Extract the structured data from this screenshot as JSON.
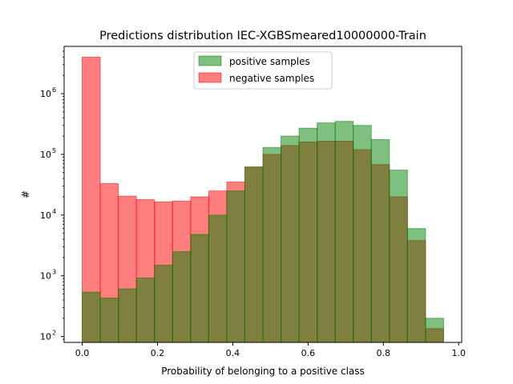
{
  "chart_data": {
    "type": "bar",
    "title": "Predictions distribution IEC-XGBSmeared10000000-Train",
    "xlabel": "Probability of belonging to a positive class",
    "ylabel": "#",
    "yscale": "log",
    "xlim": [
      -0.048,
      1.008
    ],
    "ylim": [
      80,
      6000000
    ],
    "bin_edges": [
      0.0,
      0.048,
      0.096,
      0.144,
      0.192,
      0.24,
      0.288,
      0.336,
      0.384,
      0.432,
      0.48,
      0.528,
      0.576,
      0.624,
      0.672,
      0.72,
      0.768,
      0.816,
      0.864,
      0.912,
      0.96
    ],
    "xticks": [
      {
        "value": 0.0,
        "label": "0.0"
      },
      {
        "value": 0.2,
        "label": "0.2"
      },
      {
        "value": 0.4,
        "label": "0.4"
      },
      {
        "value": 0.6,
        "label": "0.6"
      },
      {
        "value": 0.8,
        "label": "0.8"
      },
      {
        "value": 1.0,
        "label": "1.0"
      }
    ],
    "yticks": [
      {
        "value": 100,
        "base": "10",
        "exp": "2"
      },
      {
        "value": 1000,
        "base": "10",
        "exp": "3"
      },
      {
        "value": 10000,
        "base": "10",
        "exp": "4"
      },
      {
        "value": 100000,
        "base": "10",
        "exp": "5"
      },
      {
        "value": 1000000,
        "base": "10",
        "exp": "6"
      }
    ],
    "legend": {
      "placement": "upper-center"
    },
    "series": [
      {
        "name": "positive samples",
        "fill": "#008000",
        "edge": "#008000",
        "alpha": 0.5,
        "values": [
          540,
          430,
          610,
          920,
          1500,
          2500,
          4800,
          10000,
          25000,
          62000,
          130000,
          200000,
          270000,
          330000,
          350000,
          300000,
          175000,
          55000,
          6000,
          200
        ]
      },
      {
        "name": "negative samples",
        "fill": "#ff0000",
        "edge": "#ff0000",
        "alpha": 0.5,
        "values": [
          4000000,
          33000,
          20500,
          18000,
          16500,
          17000,
          20000,
          25000,
          35000,
          62000,
          100000,
          140000,
          160000,
          165000,
          165000,
          120000,
          68000,
          20000,
          3800,
          135
        ]
      }
    ]
  }
}
